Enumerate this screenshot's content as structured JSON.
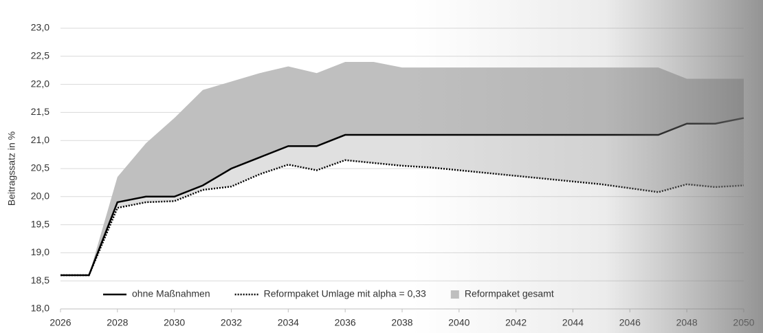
{
  "chart_data": {
    "type": "line",
    "y_label": "Beitragssatz in %",
    "x": [
      2026,
      2027,
      2028,
      2029,
      2030,
      2031,
      2032,
      2033,
      2034,
      2035,
      2036,
      2037,
      2038,
      2039,
      2040,
      2041,
      2042,
      2043,
      2044,
      2045,
      2046,
      2047,
      2048,
      2049,
      2050
    ],
    "series": [
      {
        "name": "ohne Maßnahmen",
        "color": "#000000",
        "style": "solid",
        "values": [
          18.6,
          18.6,
          19.9,
          20.0,
          20.0,
          20.2,
          20.5,
          20.7,
          20.9,
          20.9,
          21.1,
          21.1,
          21.1,
          21.1,
          21.1,
          21.1,
          21.1,
          21.1,
          21.1,
          21.1,
          21.1,
          21.1,
          21.3,
          21.3,
          21.4
        ]
      },
      {
        "name": "Reformpaket Umlage mit alpha = 0,33",
        "color": "#000000",
        "style": "dotted",
        "values": [
          18.6,
          18.6,
          19.8,
          19.9,
          19.92,
          20.12,
          20.18,
          20.4,
          20.57,
          20.47,
          20.65,
          20.6,
          20.55,
          20.52,
          20.47,
          20.42,
          20.37,
          20.32,
          20.27,
          20.22,
          20.15,
          20.08,
          20.22,
          20.17,
          20.2
        ]
      },
      {
        "name": "Reformpaket gesamt",
        "color": "#bfbfbf",
        "style": "area",
        "values": [
          18.6,
          18.6,
          20.35,
          20.95,
          21.4,
          21.9,
          22.05,
          22.2,
          22.32,
          22.2,
          22.4,
          22.4,
          22.3,
          22.3,
          22.3,
          22.3,
          22.3,
          22.3,
          22.3,
          22.3,
          22.3,
          22.3,
          22.1,
          22.1,
          22.1
        ]
      }
    ],
    "xlim": [
      2026,
      2050
    ],
    "xticks": [
      2026,
      2028,
      2030,
      2032,
      2034,
      2036,
      2038,
      2040,
      2042,
      2044,
      2046,
      2048,
      2050
    ],
    "ylim": [
      18.0,
      23.0
    ],
    "yticks": [
      {
        "value": 18.0,
        "label": "18,0"
      },
      {
        "value": 18.5,
        "label": "18,5"
      },
      {
        "value": 19.0,
        "label": "19,0"
      },
      {
        "value": 19.5,
        "label": "19,5"
      },
      {
        "value": 20.0,
        "label": "20,0"
      },
      {
        "value": 20.5,
        "label": "20,5"
      },
      {
        "value": 21.0,
        "label": "21,0"
      },
      {
        "value": 21.5,
        "label": "21,5"
      },
      {
        "value": 22.0,
        "label": "22,0"
      },
      {
        "value": 22.5,
        "label": "22,5"
      },
      {
        "value": 23.0,
        "label": "23,0"
      }
    ],
    "grid": true,
    "legend": "bottom"
  }
}
